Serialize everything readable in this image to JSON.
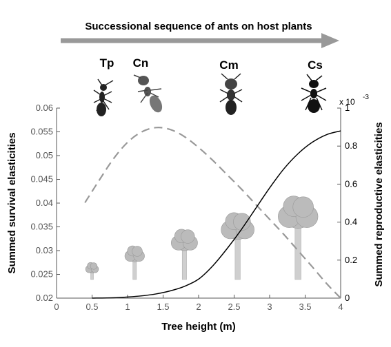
{
  "chart_data": {
    "type": "line",
    "title": "Successional sequence of ants on host plants",
    "xlabel": "Tree height (m)",
    "ylabel_left": "Summed survival elasticities",
    "ylabel_right": "Summed reproductive elasticities",
    "right_axis_exponent": "x 10",
    "right_axis_exponent_power": "-3",
    "xlim": [
      0,
      4
    ],
    "ylim_left": [
      0.02,
      0.06
    ],
    "ylim_right": [
      0,
      1
    ],
    "x_ticks": [
      "0",
      "0.5",
      "1",
      "1.5",
      "2",
      "2.5",
      "3",
      "3.5",
      "4"
    ],
    "left_ticks": [
      "0.02",
      "0.025",
      "0.03",
      "0.035",
      "0.04",
      "0.045",
      "0.05",
      "0.055",
      "0.06"
    ],
    "right_ticks": [
      "0",
      "0.2",
      "0.4",
      "0.6",
      "0.8",
      "1"
    ],
    "grid": false,
    "ant_species": [
      {
        "label": "Tp",
        "x": 0.7
      },
      {
        "label": "Cn",
        "x": 1.2
      },
      {
        "label": "Cm",
        "x": 2.4
      },
      {
        "label": "Cs",
        "x": 3.6
      }
    ],
    "trees_at_x": [
      0.5,
      1.1,
      1.8,
      2.55,
      3.4
    ],
    "series": [
      {
        "axis": "left",
        "style": "dashed",
        "color": "#999999",
        "x": [
          0.4,
          0.6,
          0.8,
          1.0,
          1.2,
          1.4,
          1.6,
          1.8,
          2.0,
          2.2,
          2.4,
          2.6,
          2.8,
          3.0,
          3.2,
          3.4,
          3.6,
          3.8,
          4.0
        ],
        "values": [
          0.0401,
          0.0448,
          0.0493,
          0.0528,
          0.055,
          0.0559,
          0.0555,
          0.054,
          0.0517,
          0.049,
          0.046,
          0.043,
          0.0398,
          0.0366,
          0.0334,
          0.03,
          0.0266,
          0.0231,
          0.02
        ]
      },
      {
        "axis": "right",
        "style": "solid",
        "color": "#000000",
        "x": [
          0.5,
          0.8,
          1.0,
          1.2,
          1.4,
          1.6,
          1.8,
          2.0,
          2.2,
          2.4,
          2.6,
          2.8,
          3.0,
          3.2,
          3.4,
          3.6,
          3.8,
          4.0
        ],
        "values": [
          0.0,
          0.002,
          0.006,
          0.012,
          0.022,
          0.038,
          0.062,
          0.1,
          0.17,
          0.26,
          0.36,
          0.47,
          0.58,
          0.68,
          0.76,
          0.82,
          0.86,
          0.88
        ]
      }
    ]
  },
  "colors": {
    "arrow": "#999999",
    "tree_crown": "#bbbbbb",
    "tree_trunk": "#cfcfcf",
    "axis": "#555555",
    "ant": "#222222"
  }
}
